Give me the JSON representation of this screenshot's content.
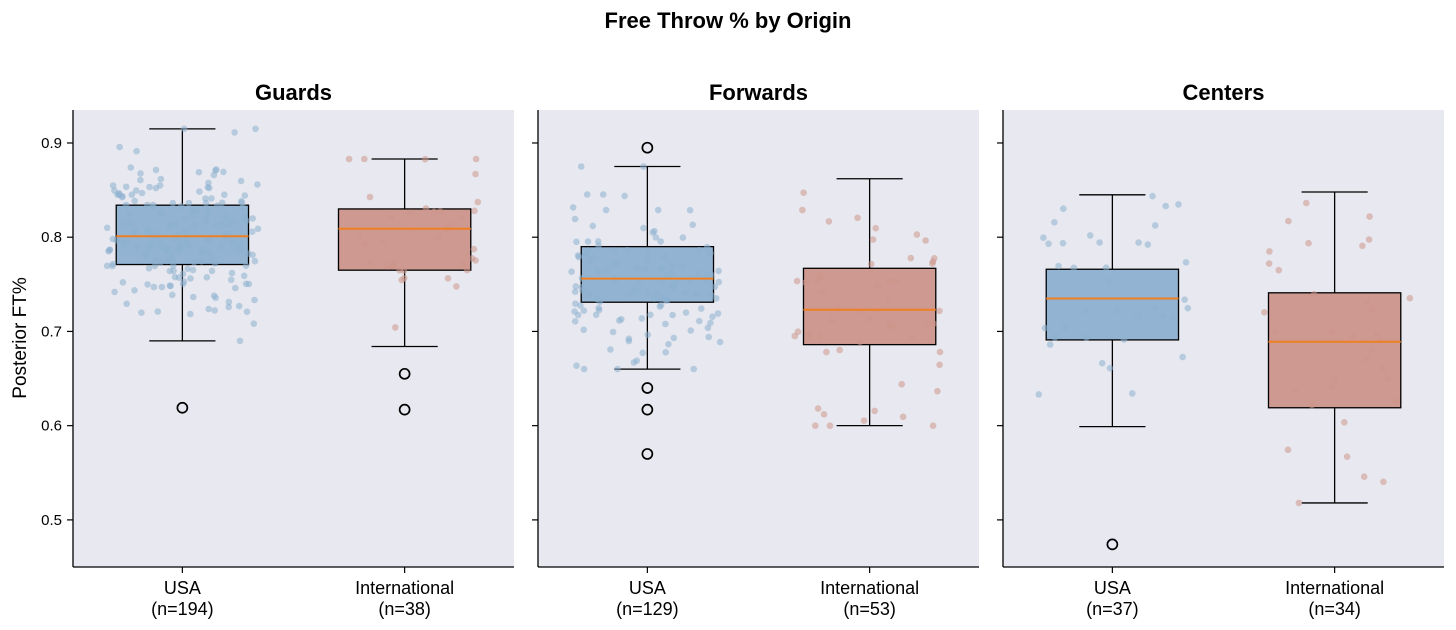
{
  "chart_data": {
    "type": "box",
    "title": "Free Throw % by Origin",
    "ylabel": "Posterior FT%",
    "ylim": [
      0.45,
      0.935
    ],
    "yticks": [
      0.5,
      0.6,
      0.7,
      0.8,
      0.9
    ],
    "ytick_labels": [
      "0.5",
      "0.6",
      "0.7",
      "0.8",
      "0.9"
    ],
    "grid": false,
    "colors": {
      "USA": "#8db0d0",
      "International": "#cc958b",
      "median": "#f07f23",
      "panel_bg": "#e8e8f0"
    },
    "panels": [
      {
        "title": "Guards",
        "groups": [
          {
            "name": "USA",
            "label": "USA",
            "n_label": "(n=194)",
            "n": 194,
            "whislo": 0.69,
            "q1": 0.771,
            "median": 0.801,
            "q3": 0.834,
            "whishi": 0.915,
            "fliers": [
              0.619
            ]
          },
          {
            "name": "International",
            "label": "International",
            "n_label": "(n=38)",
            "n": 38,
            "whislo": 0.684,
            "q1": 0.765,
            "median": 0.809,
            "q3": 0.83,
            "whishi": 0.883,
            "fliers": [
              0.655,
              0.617
            ]
          }
        ]
      },
      {
        "title": "Forwards",
        "groups": [
          {
            "name": "USA",
            "label": "USA",
            "n_label": "(n=129)",
            "n": 129,
            "whislo": 0.66,
            "q1": 0.731,
            "median": 0.756,
            "q3": 0.79,
            "whishi": 0.875,
            "fliers": [
              0.895,
              0.64,
              0.617,
              0.57
            ]
          },
          {
            "name": "International",
            "label": "International",
            "n_label": "(n=53)",
            "n": 53,
            "whislo": 0.6,
            "q1": 0.686,
            "median": 0.723,
            "q3": 0.767,
            "whishi": 0.862,
            "fliers": []
          }
        ]
      },
      {
        "title": "Centers",
        "groups": [
          {
            "name": "USA",
            "label": "USA",
            "n_label": "(n=37)",
            "n": 37,
            "whislo": 0.599,
            "q1": 0.691,
            "median": 0.735,
            "q3": 0.766,
            "whishi": 0.845,
            "fliers": [
              0.474
            ]
          },
          {
            "name": "International",
            "label": "International",
            "n_label": "(n=34)",
            "n": 34,
            "whislo": 0.518,
            "q1": 0.619,
            "median": 0.689,
            "q3": 0.741,
            "whishi": 0.848,
            "fliers": []
          }
        ]
      }
    ]
  }
}
